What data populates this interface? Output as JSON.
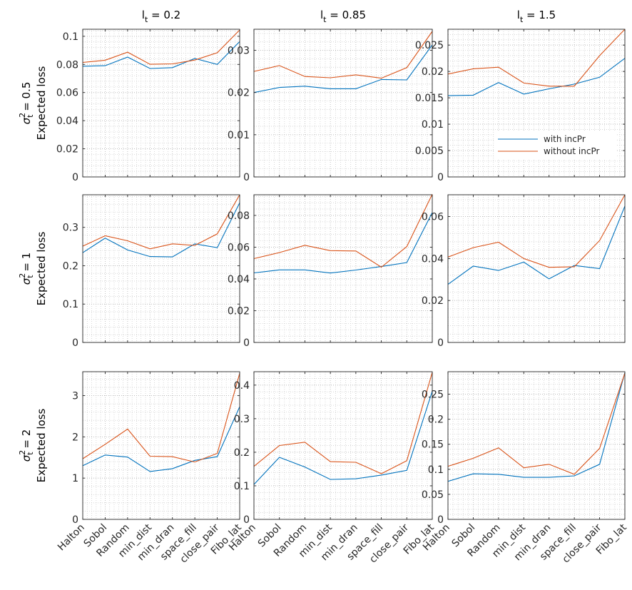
{
  "colors": {
    "with": "#0072BD",
    "without": "#D95319",
    "axis": "#262626",
    "grid": "#c8c8c8"
  },
  "layout": {
    "col_titles": [
      {
        "base": "l",
        "sub": "t",
        "rest": " = 0.2"
      },
      {
        "base": "l",
        "sub": "t",
        "rest": " = 0.85"
      },
      {
        "base": "l",
        "sub": "t",
        "rest": " = 1.5"
      }
    ],
    "row_labels": [
      {
        "sym": "σ",
        "sup": "2",
        "sub": "t",
        "rest": " = 0.5",
        "line2": "Expected loss"
      },
      {
        "sym": "σ",
        "sup": "2",
        "sub": "t",
        "rest": " = 1",
        "line2": "Expected loss"
      },
      {
        "sym": "σ",
        "sup": "2",
        "sub": "t",
        "rest": " = 2",
        "line2": "Expected loss"
      }
    ]
  },
  "chart_data": [
    {
      "type": "line",
      "row": 0,
      "col": 0,
      "categories": [
        "Halton",
        "Sobol",
        "Random",
        "min_dist",
        "min_dran",
        "space_fill",
        "close_pair",
        "Fibo_lat"
      ],
      "ylim": [
        0,
        0.105
      ],
      "yticks": [
        "0",
        "0.02",
        "0.04",
        "0.06",
        "0.08",
        "0.1"
      ],
      "ytick_values": [
        0,
        0.02,
        0.04,
        0.06,
        0.08,
        0.1
      ],
      "series": [
        {
          "name": "with incPr",
          "values": [
            0.0787,
            0.0791,
            0.0852,
            0.0771,
            0.0777,
            0.0842,
            0.08,
            0.0962
          ]
        },
        {
          "name": "without incPr",
          "values": [
            0.0814,
            0.083,
            0.0887,
            0.0801,
            0.0804,
            0.0831,
            0.0883,
            0.1045
          ]
        }
      ],
      "grid": true
    },
    {
      "type": "line",
      "row": 0,
      "col": 1,
      "categories": [
        "Halton",
        "Sobol",
        "Random",
        "min_dist",
        "min_dran",
        "space_fill",
        "close_pair",
        "Fibo_lat"
      ],
      "ylim": [
        0,
        0.035
      ],
      "yticks": [
        "0",
        "0.01",
        "0.02",
        "0.03"
      ],
      "ytick_values": [
        0,
        0.01,
        0.02,
        0.03
      ],
      "series": [
        {
          "name": "with incPr",
          "values": [
            0.02,
            0.0212,
            0.0215,
            0.0209,
            0.0209,
            0.0231,
            0.023,
            0.0313
          ]
        },
        {
          "name": "without incPr",
          "values": [
            0.025,
            0.0264,
            0.0238,
            0.0235,
            0.0242,
            0.0234,
            0.0259,
            0.0345
          ]
        }
      ],
      "grid": true
    },
    {
      "type": "line",
      "row": 0,
      "col": 2,
      "categories": [
        "Halton",
        "Sobol",
        "Random",
        "min_dist",
        "min_dran",
        "space_fill",
        "close_pair",
        "Fibo_lat"
      ],
      "ylim": [
        0,
        0.028
      ],
      "yticks": [
        "0",
        "0.005",
        "0.01",
        "0.015",
        "0.02",
        "0.025"
      ],
      "ytick_values": [
        0,
        0.005,
        0.01,
        0.015,
        0.02,
        0.025
      ],
      "series": [
        {
          "name": "with incPr",
          "values": [
            0.0154,
            0.0155,
            0.0179,
            0.0157,
            0.0167,
            0.0176,
            0.0189,
            0.0225
          ]
        },
        {
          "name": "without incPr",
          "values": [
            0.0195,
            0.0205,
            0.0208,
            0.0178,
            0.0172,
            0.0172,
            0.023,
            0.028
          ]
        }
      ],
      "grid": true,
      "legend": {
        "placement": "lower-right",
        "entries": [
          "with incPr",
          "without incPr"
        ]
      }
    },
    {
      "type": "line",
      "row": 1,
      "col": 0,
      "categories": [
        "Halton",
        "Sobol",
        "Random",
        "min_dist",
        "min_dran",
        "space_fill",
        "close_pair",
        "Fibo_lat"
      ],
      "ylim": [
        0,
        0.385
      ],
      "yticks": [
        "0",
        "0.1",
        "0.2",
        "0.3"
      ],
      "ytick_values": [
        0,
        0.1,
        0.2,
        0.3
      ],
      "series": [
        {
          "name": "with incPr",
          "values": [
            0.234,
            0.272,
            0.241,
            0.224,
            0.223,
            0.257,
            0.247,
            0.364
          ]
        },
        {
          "name": "without incPr",
          "values": [
            0.251,
            0.278,
            0.265,
            0.244,
            0.257,
            0.253,
            0.283,
            0.385
          ]
        }
      ],
      "grid": true
    },
    {
      "type": "line",
      "row": 1,
      "col": 1,
      "categories": [
        "Halton",
        "Sobol",
        "Random",
        "min_dist",
        "min_dran",
        "space_fill",
        "close_pair",
        "Fibo_lat"
      ],
      "ylim": [
        0,
        0.093
      ],
      "yticks": [
        "0",
        "0.02",
        "0.04",
        "0.06",
        "0.08"
      ],
      "ytick_values": [
        0,
        0.02,
        0.04,
        0.06,
        0.08
      ],
      "series": [
        {
          "name": "with incPr",
          "values": [
            0.0438,
            0.0457,
            0.0457,
            0.0437,
            0.0456,
            0.0478,
            0.0503,
            0.0818
          ]
        },
        {
          "name": "without incPr",
          "values": [
            0.0528,
            0.0566,
            0.0612,
            0.0578,
            0.0576,
            0.0474,
            0.0604,
            0.0933
          ]
        }
      ],
      "grid": true
    },
    {
      "type": "line",
      "row": 1,
      "col": 2,
      "categories": [
        "Halton",
        "Sobol",
        "Random",
        "min_dist",
        "min_dran",
        "space_fill",
        "close_pair",
        "Fibo_lat"
      ],
      "ylim": [
        0,
        0.0704
      ],
      "yticks": [
        "0",
        "0.02",
        "0.04",
        "0.06"
      ],
      "ytick_values": [
        0,
        0.02,
        0.04,
        0.06
      ],
      "series": [
        {
          "name": "with incPr",
          "values": [
            0.0277,
            0.0364,
            0.0343,
            0.0383,
            0.0303,
            0.0367,
            0.0352,
            0.065
          ]
        },
        {
          "name": "without incPr",
          "values": [
            0.0407,
            0.0452,
            0.0478,
            0.04,
            0.0358,
            0.0361,
            0.0486,
            0.0704
          ]
        }
      ],
      "grid": true
    },
    {
      "type": "line",
      "row": 2,
      "col": 0,
      "categories": [
        "Halton",
        "Sobol",
        "Random",
        "min_dist",
        "min_dran",
        "space_fill",
        "close_pair",
        "Fibo_lat"
      ],
      "ylim": [
        0,
        3.58
      ],
      "yticks": [
        "0",
        "1",
        "2",
        "3"
      ],
      "ytick_values": [
        0,
        1,
        2,
        3
      ],
      "series": [
        {
          "name": "with incPr",
          "values": [
            1.3,
            1.56,
            1.51,
            1.16,
            1.23,
            1.43,
            1.52,
            2.73
          ]
        },
        {
          "name": "without incPr",
          "values": [
            1.47,
            1.82,
            2.19,
            1.53,
            1.52,
            1.39,
            1.6,
            3.54
          ]
        }
      ],
      "grid": true
    },
    {
      "type": "line",
      "row": 2,
      "col": 1,
      "categories": [
        "Halton",
        "Sobol",
        "Random",
        "min_dist",
        "min_dran",
        "space_fill",
        "close_pair",
        "Fibo_lat"
      ],
      "ylim": [
        0,
        0.44
      ],
      "yticks": [
        "0",
        "0.1",
        "0.2",
        "0.3",
        "0.4"
      ],
      "ytick_values": [
        0,
        0.1,
        0.2,
        0.3,
        0.4
      ],
      "series": [
        {
          "name": "with incPr",
          "values": [
            0.104,
            0.185,
            0.156,
            0.119,
            0.121,
            0.132,
            0.146,
            0.382
          ]
        },
        {
          "name": "without incPr",
          "values": [
            0.158,
            0.22,
            0.23,
            0.172,
            0.17,
            0.136,
            0.175,
            0.438
          ]
        }
      ],
      "grid": true
    },
    {
      "type": "line",
      "row": 2,
      "col": 2,
      "categories": [
        "Halton",
        "Sobol",
        "Random",
        "min_dist",
        "min_dran",
        "space_fill",
        "close_pair",
        "Fibo_lat"
      ],
      "ylim": [
        0,
        0.295
      ],
      "yticks": [
        "0",
        "0.05",
        "0.1",
        "0.15",
        "0.2",
        "0.25"
      ],
      "ytick_values": [
        0,
        0.05,
        0.1,
        0.15,
        0.2,
        0.25
      ],
      "series": [
        {
          "name": "with incPr",
          "values": [
            0.076,
            0.091,
            0.09,
            0.084,
            0.084,
            0.087,
            0.11,
            0.293
          ]
        },
        {
          "name": "without incPr",
          "values": [
            0.106,
            0.122,
            0.143,
            0.103,
            0.11,
            0.09,
            0.142,
            0.292
          ]
        }
      ],
      "grid": true
    }
  ]
}
